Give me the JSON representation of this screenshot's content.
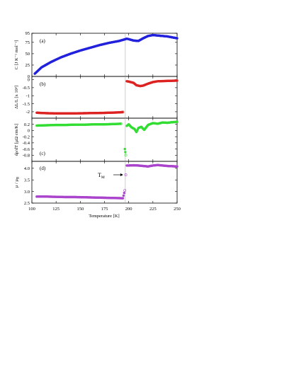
{
  "chart_data": [
    {
      "panel": "(a)",
      "type": "scatter",
      "ylabel": "C [J K⁻¹ mol⁻¹]",
      "xlim": [
        100,
        250
      ],
      "ylim": [
        0,
        95
      ],
      "yticks": [
        "0",
        "25",
        "50",
        "75",
        "95"
      ],
      "ytick_values": [
        0,
        25,
        50,
        75,
        95
      ],
      "color": "#2222dd",
      "series": [
        {
          "x": [
            103,
            110,
            120,
            130,
            140,
            150,
            160,
            170,
            180,
            190,
            195,
            198,
            200,
            205,
            210,
            215,
            220,
            225,
            230,
            235,
            240,
            245,
            250
          ],
          "y": [
            6,
            20,
            32,
            42,
            50,
            57,
            63,
            69,
            74,
            78,
            81,
            83,
            82,
            79,
            78,
            84,
            89,
            91,
            90,
            89,
            88,
            86,
            84
          ]
        }
      ]
    },
    {
      "panel": "(b)",
      "type": "scatter",
      "ylabel": "ΔL/L [x 10³]",
      "xlim": [
        100,
        250
      ],
      "ylim": [
        -2.4,
        0.2
      ],
      "yticks": [
        "0",
        "-0.5",
        "-1",
        "-1.5",
        "-2"
      ],
      "ytick_values": [
        0,
        -0.5,
        -1,
        -1.5,
        -2
      ],
      "color": "#dd2222",
      "series": [
        {
          "x": [
            105,
            115,
            125,
            135,
            145,
            155,
            165,
            175,
            185,
            190,
            194,
            198,
            200,
            205,
            208,
            212,
            215,
            220,
            225,
            230,
            240,
            250
          ],
          "y": [
            -2.06,
            -2.09,
            -2.1,
            -2.1,
            -2.1,
            -2.09,
            -2.08,
            -2.07,
            -2.05,
            -2.04,
            -2.02,
            -0.1,
            -0.12,
            -0.2,
            -0.35,
            -0.4,
            -0.37,
            -0.25,
            -0.15,
            -0.1,
            -0.08,
            -0.06
          ]
        }
      ]
    },
    {
      "panel": "(c)",
      "type": "scatter",
      "ylabel": "dρ/dT [μΩ cm/K]",
      "xlim": [
        100,
        250
      ],
      "ylim": [
        -1.0,
        0.4
      ],
      "yticks": [
        "0.2",
        "0",
        "-0.2",
        "-0.4",
        "-0.6",
        "-0.8"
      ],
      "ytick_values": [
        0.2,
        0,
        -0.2,
        -0.4,
        -0.6,
        -0.8
      ],
      "color": "#33dd33",
      "series": [
        {
          "x": [
            105,
            115,
            125,
            135,
            145,
            155,
            165,
            175,
            185,
            192,
            196,
            197,
            198,
            200,
            203,
            206,
            208,
            210,
            213,
            216,
            220,
            225,
            230,
            235,
            240,
            245,
            250
          ],
          "y": [
            0.16,
            0.17,
            0.18,
            0.18,
            0.19,
            0.19,
            0.2,
            0.2,
            0.21,
            0.22,
            -0.6,
            -0.8,
            0.15,
            0.2,
            0.1,
            0.05,
            -0.05,
            0.08,
            0.12,
            0.02,
            0.18,
            0.24,
            0.22,
            0.26,
            0.25,
            0.27,
            0.28
          ]
        }
      ]
    },
    {
      "panel": "(d)",
      "type": "scatter",
      "ylabel": "μ / μₙ",
      "ylabel_main": "μ / μ",
      "ylabel_sub": "B",
      "xlabel": "Temperature [K]",
      "xlim": [
        100,
        250
      ],
      "ylim": [
        2.5,
        4.3
      ],
      "yticks": [
        "4.0",
        "3.5",
        "3.0",
        "2.5"
      ],
      "ytick_values": [
        4.0,
        3.5,
        3.0,
        2.5
      ],
      "xticks": [
        "100",
        "125",
        "150",
        "175",
        "200",
        "225",
        "250"
      ],
      "xtick_values": [
        100,
        125,
        150,
        175,
        200,
        225,
        250
      ],
      "color": "#aa44cc",
      "annotation_main": "T",
      "annotation_sub": "M",
      "annotation_x": 196.5,
      "annotation_y": 3.72,
      "series": [
        {
          "x": [
            105,
            115,
            125,
            135,
            145,
            155,
            165,
            175,
            185,
            194,
            196,
            197,
            198,
            200,
            205,
            210,
            215,
            220,
            225,
            230,
            235,
            240,
            245,
            250
          ],
          "y": [
            2.78,
            2.78,
            2.77,
            2.76,
            2.76,
            2.75,
            2.74,
            2.73,
            2.72,
            2.71,
            3.05,
            3.72,
            4.12,
            4.12,
            4.13,
            4.12,
            4.1,
            4.08,
            4.12,
            4.14,
            4.12,
            4.1,
            4.09,
            4.08
          ]
        }
      ]
    }
  ],
  "transition_line": {
    "x": 196.5,
    "color": "#aaaaaa"
  }
}
